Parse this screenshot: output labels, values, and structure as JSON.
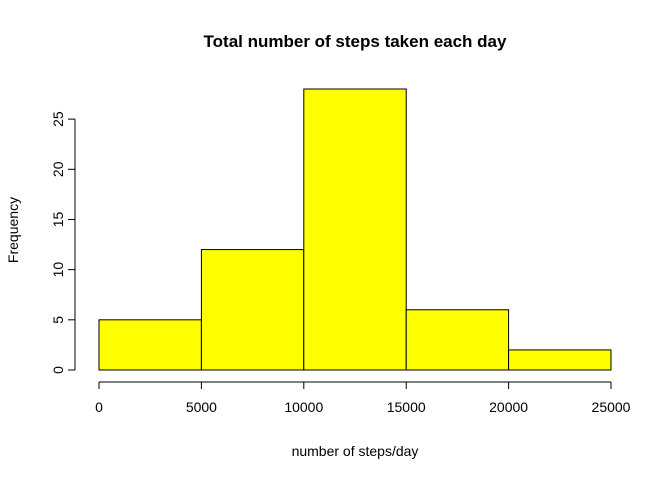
{
  "chart_data": {
    "type": "bar",
    "subtype": "histogram",
    "title": "Total number of steps taken each day",
    "xlabel": "number of steps/day",
    "ylabel": "Frequency",
    "bins": [
      {
        "start": 0,
        "end": 5000,
        "count": 5
      },
      {
        "start": 5000,
        "end": 10000,
        "count": 12
      },
      {
        "start": 10000,
        "end": 15000,
        "count": 28
      },
      {
        "start": 15000,
        "end": 20000,
        "count": 6
      },
      {
        "start": 20000,
        "end": 25000,
        "count": 2
      }
    ],
    "x_ticks": [
      0,
      5000,
      10000,
      15000,
      20000,
      25000
    ],
    "y_ticks": [
      0,
      5,
      10,
      15,
      20,
      25
    ],
    "xlim": [
      0,
      25000
    ],
    "ylim": [
      0,
      28
    ],
    "grid": false,
    "bar_color": "#ffff00",
    "border_color": "#000000"
  }
}
